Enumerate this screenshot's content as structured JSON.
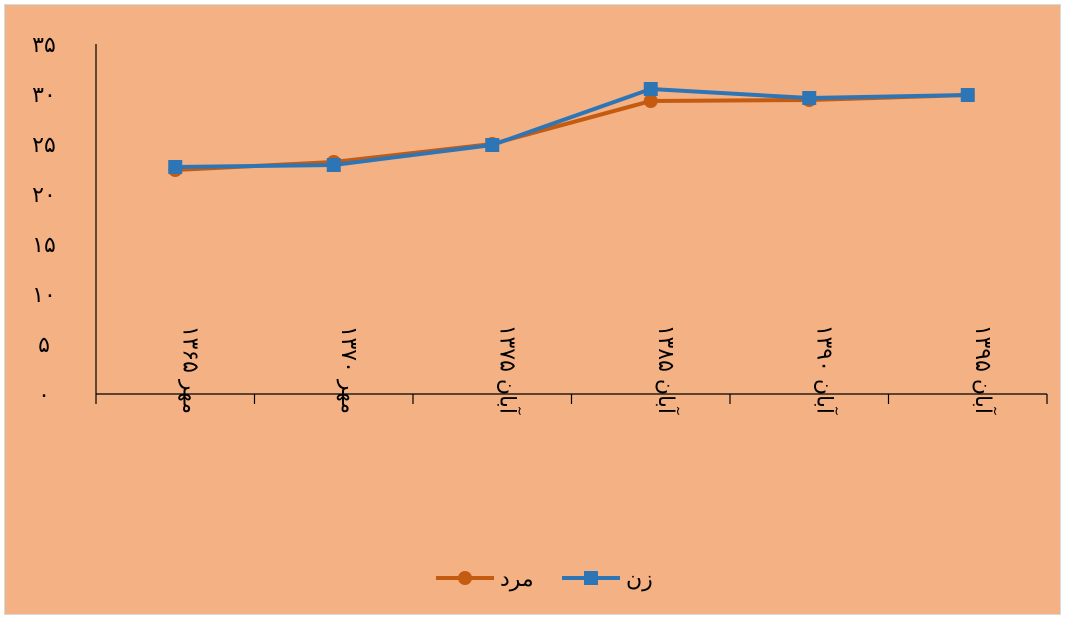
{
  "chart_data": {
    "type": "line",
    "title": "",
    "xlabel": "",
    "ylabel": "",
    "categories": [
      "مهر ۱۳۶۵",
      "مهر ۱۳۷۰",
      "آبان ۱۳۷۵",
      "آبان ۱۳۸۵",
      "آبان ۱۳۹۰",
      "آبان ۱۳۹۵"
    ],
    "y_ticks": [
      "۰",
      "۵",
      "۱۰",
      "۱۵",
      "۲۰",
      "۲۵",
      "۳۰",
      "۳۵"
    ],
    "ylim": [
      0,
      35
    ],
    "grid": false,
    "legend_position": "bottom",
    "series": [
      {
        "name": "مرد",
        "color": "#C55A11",
        "marker": "circle",
        "values": [
          22.4,
          23.2,
          25.0,
          29.3,
          29.4,
          29.9
        ]
      },
      {
        "name": "زن",
        "color": "#2E75B6",
        "marker": "square",
        "values": [
          22.7,
          22.9,
          24.9,
          30.5,
          29.6,
          29.9
        ]
      }
    ]
  }
}
